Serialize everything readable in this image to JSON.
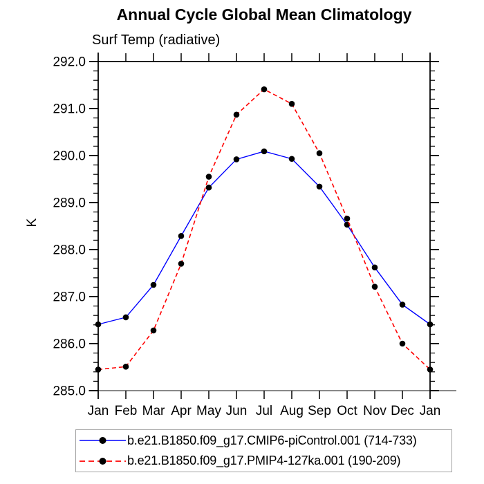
{
  "title": "Annual Cycle Global Mean Climatology",
  "subtitle": "Surf Temp (radiative)",
  "ylabel": "K",
  "legend": {
    "entries": [
      {
        "label": "b.e21.B1850.f09_g17.CMIP6-piControl.001 (714-733)",
        "color": "#0000ff",
        "dash": "solid"
      },
      {
        "label": "b.e21.B1850.f09_g17.PMIP4-127ka.001 (190-209)",
        "color": "#ff0000",
        "dash": "dashed"
      }
    ],
    "marker_color": "#000000"
  },
  "colors": {
    "frame_axis": "#000000",
    "bottom_axis": "#888888",
    "series_blue": "#0000ff",
    "series_red": "#ff0000",
    "marker": "#000000",
    "background": "#ffffff",
    "legend_border": "#a0a0a0"
  },
  "chart_data": {
    "type": "line",
    "title": "Annual Cycle Global Mean Climatology",
    "subtitle": "Surf Temp (radiative)",
    "xlabel": "",
    "ylabel": "K",
    "categories": [
      "Jan",
      "Feb",
      "Mar",
      "Apr",
      "May",
      "Jun",
      "Jul",
      "Aug",
      "Sep",
      "Oct",
      "Nov",
      "Dec",
      "Jan"
    ],
    "series": [
      {
        "name": "b.e21.B1850.f09_g17.CMIP6-piControl.001 (714-733)",
        "color": "#0000ff",
        "dash": "solid",
        "marker": "filled-circle",
        "values": [
          286.41,
          286.56,
          287.25,
          288.29,
          289.32,
          289.92,
          290.09,
          289.93,
          289.34,
          288.53,
          287.62,
          286.83,
          286.41
        ]
      },
      {
        "name": "b.e21.B1850.f09_g17.PMIP4-127ka.001 (190-209)",
        "color": "#ff0000",
        "dash": "dashed",
        "marker": "filled-circle",
        "values": [
          285.45,
          285.51,
          286.28,
          287.7,
          289.55,
          290.87,
          291.41,
          291.1,
          290.05,
          288.66,
          287.21,
          286.0,
          285.45
        ]
      }
    ],
    "ylim": [
      285.0,
      292.0
    ],
    "ytick_step": 1.0,
    "yminor_step": 0.2,
    "ytick_labels": [
      "285.0",
      "286.0",
      "287.0",
      "288.0",
      "289.0",
      "290.0",
      "291.0",
      "292.0"
    ],
    "grid": false,
    "ticks": "outward-all-sides",
    "legend_position": "bottom"
  }
}
